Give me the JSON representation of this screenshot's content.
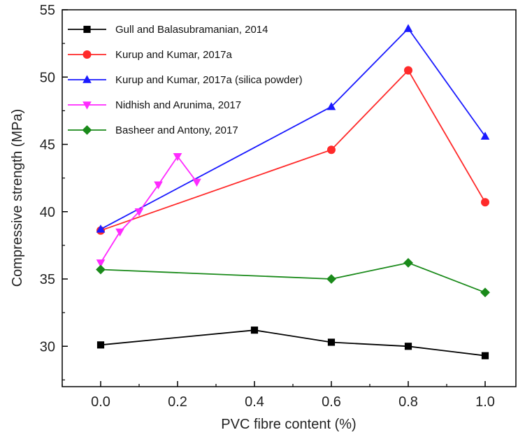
{
  "chart_data": {
    "type": "line",
    "xlabel": "PVC fibre content (%)",
    "ylabel": "Compressive strength (MPa)",
    "xlim": [
      -0.1,
      1.08
    ],
    "ylim": [
      27,
      55
    ],
    "x_ticks": [
      0.0,
      0.2,
      0.4,
      0.6,
      0.8,
      1.0
    ],
    "x_tick_labels": [
      "0.0",
      "0.2",
      "0.4",
      "0.6",
      "0.8",
      "1.0"
    ],
    "y_ticks": [
      30,
      35,
      40,
      45,
      50,
      55
    ],
    "y_tick_labels": [
      "30",
      "35",
      "40",
      "45",
      "50",
      "55"
    ],
    "grid": false,
    "legend_position": "top-left",
    "series": [
      {
        "name": "Gull and Balasubramanian, 2014",
        "color": "#000000",
        "marker": "square",
        "points": [
          [
            0.0,
            30.1
          ],
          [
            0.4,
            31.2
          ],
          [
            0.6,
            30.3
          ],
          [
            0.8,
            30.0
          ],
          [
            1.0,
            29.3
          ]
        ]
      },
      {
        "name": "Kurup and Kumar, 2017a",
        "color": "#ff2a2a",
        "marker": "circle",
        "points": [
          [
            0.0,
            38.6
          ],
          [
            0.6,
            44.6
          ],
          [
            0.8,
            50.5
          ],
          [
            1.0,
            40.7
          ]
        ]
      },
      {
        "name": "Kurup and Kumar, 2017a (silica powder)",
        "color": "#1a1aff",
        "marker": "triangle-up",
        "points": [
          [
            0.0,
            38.7
          ],
          [
            0.6,
            47.8
          ],
          [
            0.8,
            53.6
          ],
          [
            1.0,
            45.6
          ]
        ]
      },
      {
        "name": "Nidhish and Arunima, 2017",
        "color": "#ff2aff",
        "marker": "triangle-down",
        "points": [
          [
            0.0,
            36.2
          ],
          [
            0.05,
            38.5
          ],
          [
            0.1,
            40.0
          ],
          [
            0.15,
            42.0
          ],
          [
            0.2,
            44.1
          ],
          [
            0.25,
            42.2
          ]
        ]
      },
      {
        "name": "Basheer and Antony, 2017",
        "color": "#1a8a1a",
        "marker": "diamond",
        "points": [
          [
            0.0,
            35.7
          ],
          [
            0.6,
            35.0
          ],
          [
            0.8,
            36.2
          ],
          [
            1.0,
            34.0
          ]
        ]
      }
    ]
  }
}
